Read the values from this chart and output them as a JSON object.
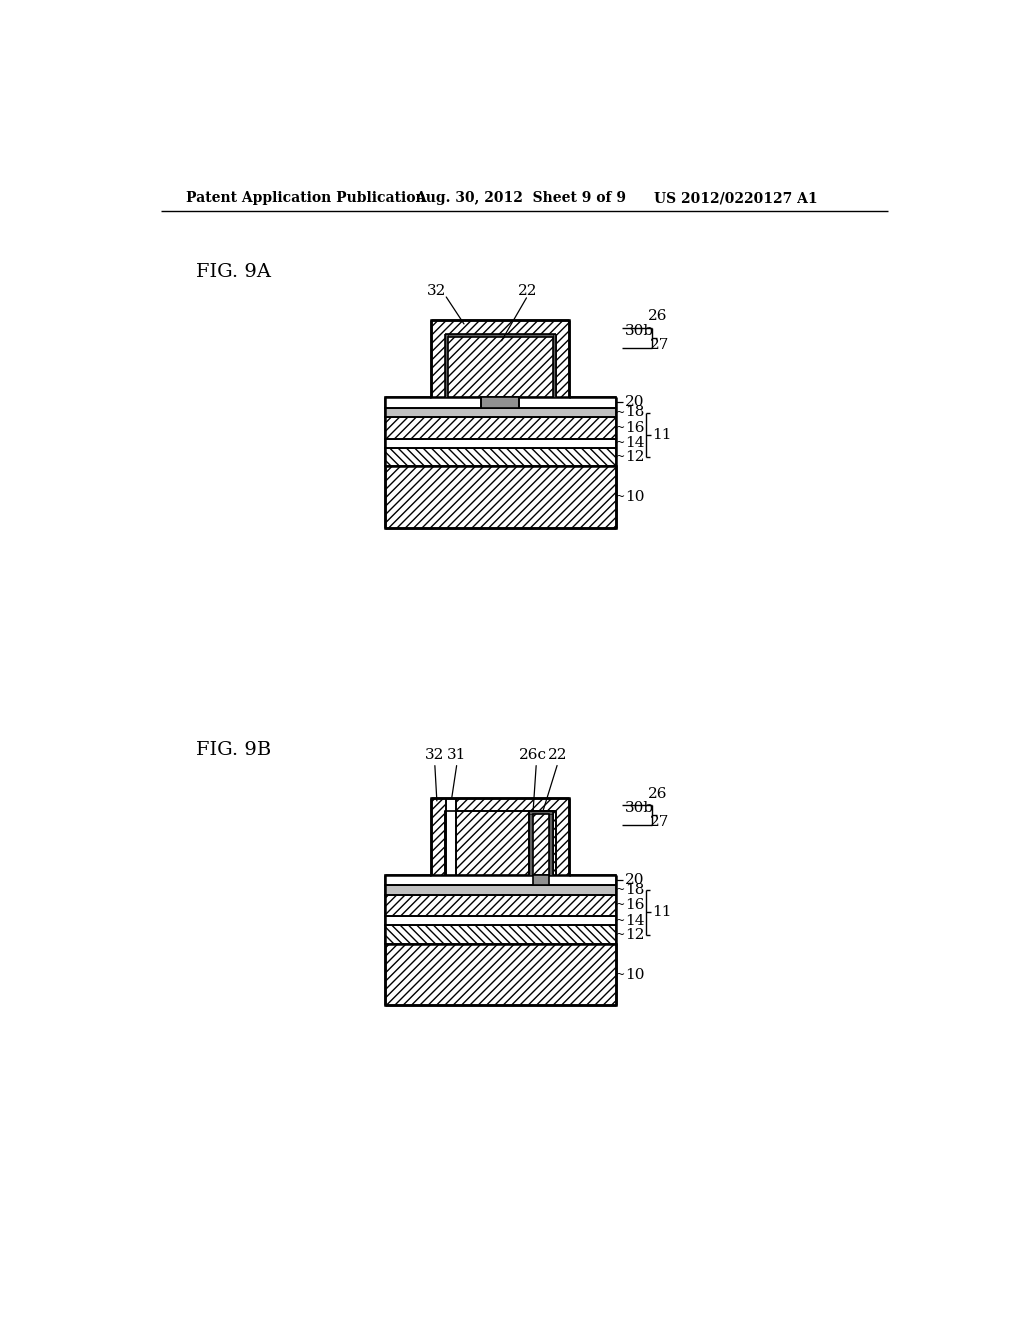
{
  "background_color": "#ffffff",
  "header_left": "Patent Application Publication",
  "header_center": "Aug. 30, 2012  Sheet 9 of 9",
  "header_right": "US 2012/0220127 A1",
  "fig9a_label": "FIG. 9A",
  "fig9b_label": "FIG. 9B"
}
